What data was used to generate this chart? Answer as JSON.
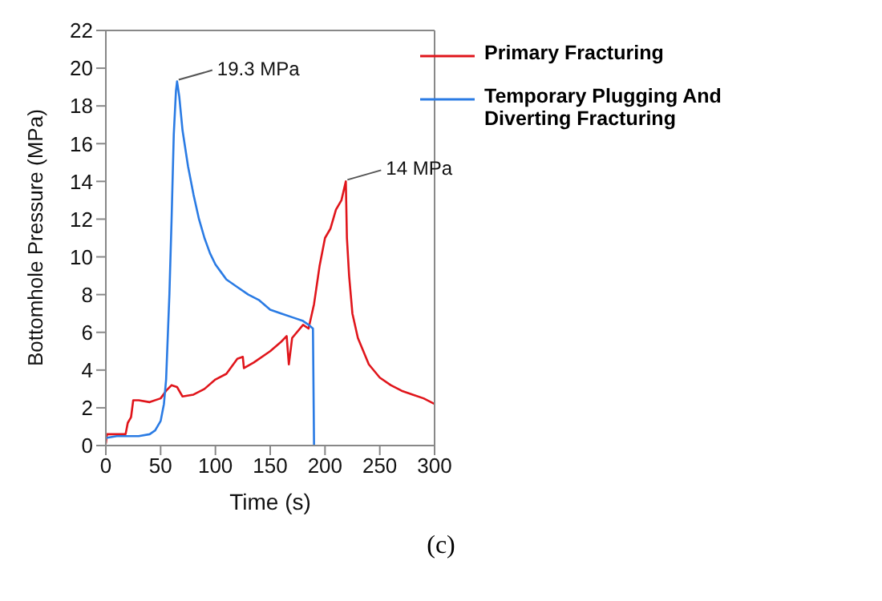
{
  "chart_data": {
    "type": "line",
    "xlabel": "Time (s)",
    "ylabel": "Bottomhole Pressure (MPa)",
    "xlim": [
      0,
      300
    ],
    "xticks": [
      0,
      50,
      100,
      150,
      200,
      250,
      300
    ],
    "ylim": [
      0,
      22
    ],
    "yticks": [
      0,
      2,
      4,
      6,
      8,
      10,
      12,
      14,
      16,
      18,
      20,
      22
    ],
    "grid": false,
    "legend": "top right",
    "marker": "none",
    "line_style": "solid",
    "series": [
      {
        "name": "Primary Fracturing",
        "color": "#e0151b",
        "x": [
          0,
          1,
          10,
          18,
          20,
          23,
          25,
          30,
          40,
          50,
          55,
          60,
          65,
          70,
          80,
          90,
          100,
          110,
          120,
          125,
          126,
          135,
          150,
          160,
          165,
          167,
          170,
          180,
          185,
          190,
          195,
          200,
          205,
          210,
          215,
          219,
          220,
          222,
          225,
          230,
          240,
          250,
          260,
          270,
          280,
          290,
          300
        ],
        "values": [
          0.1,
          0.6,
          0.6,
          0.6,
          1.2,
          1.5,
          2.4,
          2.4,
          2.3,
          2.5,
          2.9,
          3.2,
          3.1,
          2.6,
          2.7,
          3.0,
          3.5,
          3.8,
          4.6,
          4.7,
          4.1,
          4.4,
          5.0,
          5.5,
          5.8,
          4.3,
          5.7,
          6.4,
          6.2,
          7.5,
          9.5,
          11,
          11.5,
          12.5,
          13,
          14,
          11,
          9,
          7,
          5.7,
          4.3,
          3.6,
          3.2,
          2.9,
          2.7,
          2.5,
          2.2
        ]
      },
      {
        "name": "Temporary Plugging And Diverting Fracturing",
        "color": "#2a7be4",
        "x": [
          0,
          10,
          20,
          30,
          40,
          45,
          50,
          53,
          55,
          58,
          60,
          62,
          64,
          65,
          67,
          70,
          75,
          80,
          85,
          90,
          95,
          100,
          105,
          110,
          120,
          130,
          140,
          150,
          160,
          170,
          180,
          185,
          189,
          190
        ],
        "values": [
          0.4,
          0.5,
          0.5,
          0.5,
          0.6,
          0.8,
          1.3,
          2.2,
          3.5,
          8,
          12,
          16.5,
          18.8,
          19.3,
          18.5,
          16.7,
          14.8,
          13.3,
          12,
          11,
          10.2,
          9.6,
          9.2,
          8.8,
          8.4,
          8,
          7.7,
          7.2,
          7.0,
          6.8,
          6.6,
          6.4,
          6.2,
          0
        ]
      }
    ],
    "annotations": [
      {
        "text": "19.3 MPa",
        "x": 65,
        "y": 19.3
      },
      {
        "text": "14 MPa",
        "x": 219,
        "y": 14
      },
      "(c)"
    ]
  }
}
